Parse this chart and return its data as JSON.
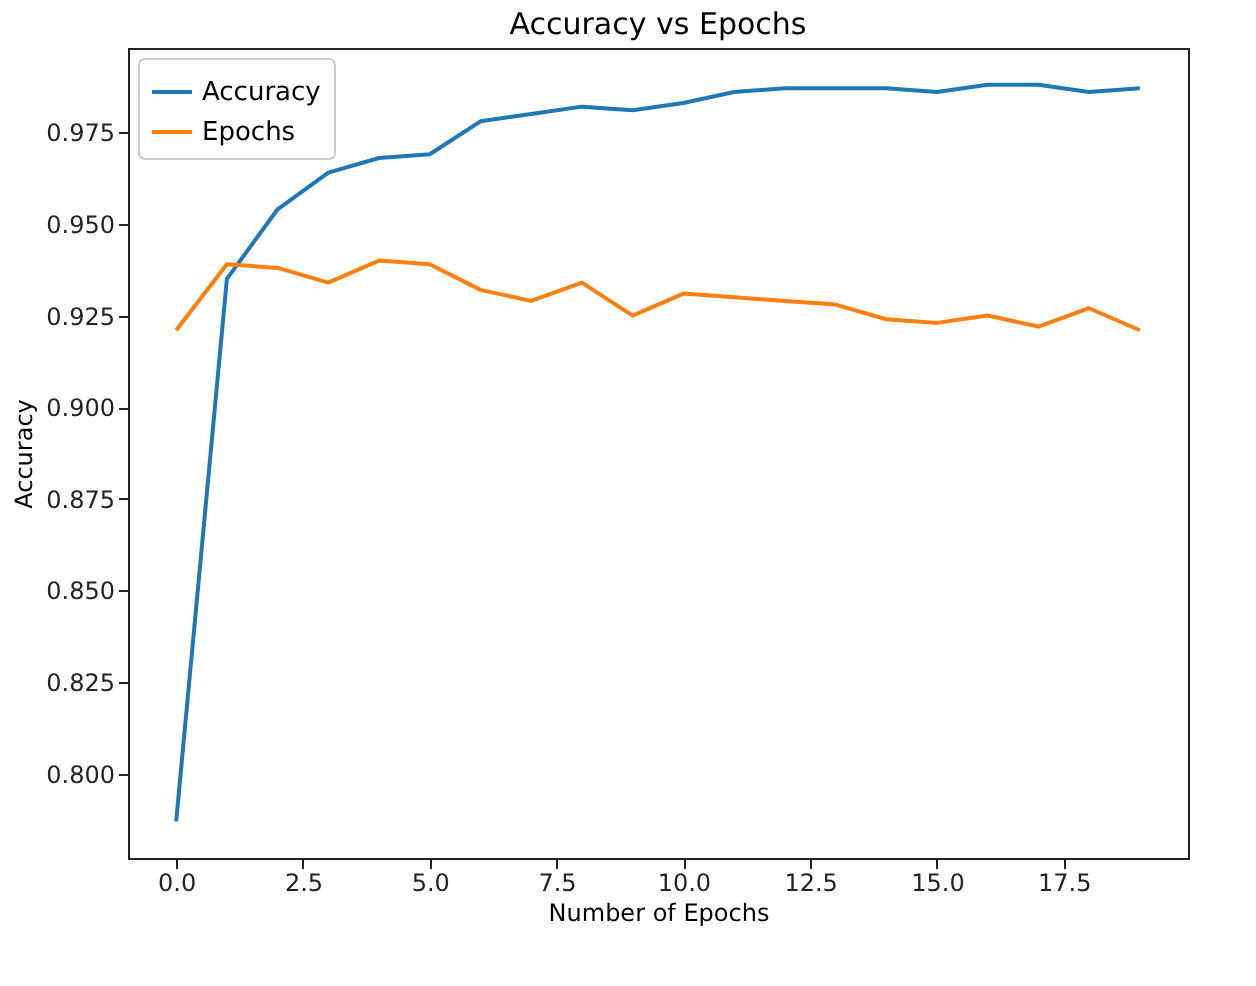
{
  "chart_data": {
    "type": "line",
    "title": "Accuracy vs Epochs",
    "xlabel": "Number of Epochs",
    "ylabel": "Accuracy",
    "x": [
      0,
      1,
      2,
      3,
      4,
      5,
      6,
      7,
      8,
      9,
      10,
      11,
      12,
      13,
      14,
      15,
      16,
      17,
      18,
      19
    ],
    "series": [
      {
        "name": "Accuracy",
        "color": "#1f77b4",
        "values": [
          0.787,
          0.935,
          0.954,
          0.964,
          0.968,
          0.969,
          0.978,
          0.98,
          0.982,
          0.981,
          0.983,
          0.986,
          0.987,
          0.987,
          0.987,
          0.986,
          0.988,
          0.988,
          0.986,
          0.987
        ]
      },
      {
        "name": "Epochs",
        "color": "#ff7f0e",
        "values": [
          0.921,
          0.939,
          0.938,
          0.934,
          0.94,
          0.939,
          0.932,
          0.929,
          0.934,
          0.925,
          0.931,
          0.93,
          0.929,
          0.928,
          0.924,
          0.923,
          0.925,
          0.922,
          0.927,
          0.921
        ]
      }
    ],
    "xlim": [
      -0.95,
      19.95
    ],
    "xticks": [
      {
        "value": 0,
        "label": "0.0"
      },
      {
        "value": 2.5,
        "label": "2.5"
      },
      {
        "value": 5,
        "label": "5.0"
      },
      {
        "value": 7.5,
        "label": "7.5"
      },
      {
        "value": 10,
        "label": "10.0"
      },
      {
        "value": 12.5,
        "label": "12.5"
      },
      {
        "value": 15,
        "label": "15.0"
      },
      {
        "value": 17.5,
        "label": "17.5"
      }
    ],
    "ylim": [
      0.777,
      0.998
    ],
    "yticks": [
      {
        "value": 0.8,
        "label": "0.800"
      },
      {
        "value": 0.825,
        "label": "0.825"
      },
      {
        "value": 0.85,
        "label": "0.850"
      },
      {
        "value": 0.875,
        "label": "0.875"
      },
      {
        "value": 0.9,
        "label": "0.900"
      },
      {
        "value": 0.925,
        "label": "0.925"
      },
      {
        "value": 0.95,
        "label": "0.950"
      },
      {
        "value": 0.975,
        "label": "0.975"
      }
    ],
    "legend": "top left",
    "grid": false,
    "marker": "none",
    "line_style": "solid"
  }
}
